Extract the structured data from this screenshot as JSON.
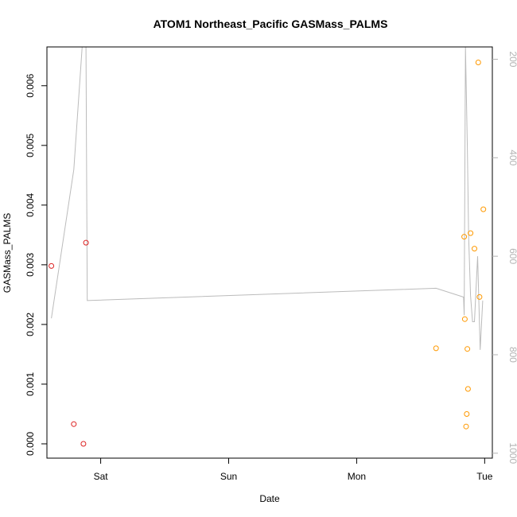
{
  "chart_data": {
    "type": "scatter",
    "title": "ATOM1 Northeast_Pacific GASMass_PALMS",
    "xlabel": "Date",
    "ylabel": "GASMass_PALMS",
    "x_unit": "days",
    "xlim": [
      -0.42,
      3.06
    ],
    "ylim": [
      -0.00024,
      0.00665
    ],
    "x_ticks": [
      {
        "value": 0,
        "label": "Sat"
      },
      {
        "value": 1,
        "label": "Sun"
      },
      {
        "value": 2,
        "label": "Mon"
      },
      {
        "value": 3,
        "label": "Tue"
      }
    ],
    "y_ticks": [
      {
        "value": 0,
        "label": "0.000"
      },
      {
        "value": 0.001,
        "label": "0.001"
      },
      {
        "value": 0.002,
        "label": "0.002"
      },
      {
        "value": 0.003,
        "label": "0.003"
      },
      {
        "value": 0.004,
        "label": "0.004"
      },
      {
        "value": 0.005,
        "label": "0.005"
      },
      {
        "value": 0.006,
        "label": "0.006"
      }
    ],
    "right_axis": {
      "ylim": [
        1010,
        175
      ],
      "ticks": [
        {
          "value": 200,
          "label": "200"
        },
        {
          "value": 400,
          "label": "400"
        },
        {
          "value": 600,
          "label": "600"
        },
        {
          "value": 800,
          "label": "800"
        },
        {
          "value": 1000,
          "label": "1000"
        }
      ],
      "color": "#b3b3b3"
    },
    "series": [
      {
        "color": "#dd2222",
        "marker": "circle-open",
        "points": [
          {
            "x": -0.385,
            "y": 0.00298
          },
          {
            "x": -0.21,
            "y": 0.00033
          },
          {
            "x": -0.135,
            "y": 0.0
          },
          {
            "x": -0.115,
            "y": 0.00337
          }
        ]
      },
      {
        "color": "#ff9900",
        "marker": "circle-open",
        "points": [
          {
            "x": 2.62,
            "y": 0.0016
          },
          {
            "x": 2.84,
            "y": 0.00347
          },
          {
            "x": 2.845,
            "y": 0.00209
          },
          {
            "x": 2.855,
            "y": 0.00029
          },
          {
            "x": 2.86,
            "y": 0.0005
          },
          {
            "x": 2.865,
            "y": 0.00159
          },
          {
            "x": 2.87,
            "y": 0.00092
          },
          {
            "x": 2.89,
            "y": 0.00353
          },
          {
            "x": 2.92,
            "y": 0.00327
          },
          {
            "x": 2.95,
            "y": 0.00639
          },
          {
            "x": 2.96,
            "y": 0.00246
          },
          {
            "x": 2.99,
            "y": 0.00393
          }
        ]
      }
    ],
    "pressure_line": {
      "color": "#bbbbbb",
      "axis": "right",
      "points": [
        {
          "x": -0.385,
          "y": 726
        },
        {
          "x": -0.21,
          "y": 424
        },
        {
          "x": -0.145,
          "y": 175
        },
        {
          "x": -0.115,
          "y": 175
        },
        {
          "x": -0.105,
          "y": 690
        },
        {
          "x": 2.62,
          "y": 665
        },
        {
          "x": 2.835,
          "y": 683
        },
        {
          "x": 2.84,
          "y": 720
        },
        {
          "x": 2.85,
          "y": 175
        },
        {
          "x": 2.865,
          "y": 380
        },
        {
          "x": 2.875,
          "y": 560
        },
        {
          "x": 2.89,
          "y": 680
        },
        {
          "x": 2.905,
          "y": 733
        },
        {
          "x": 2.92,
          "y": 733
        },
        {
          "x": 2.945,
          "y": 600
        },
        {
          "x": 2.965,
          "y": 790
        },
        {
          "x": 2.985,
          "y": 690
        }
      ]
    }
  }
}
